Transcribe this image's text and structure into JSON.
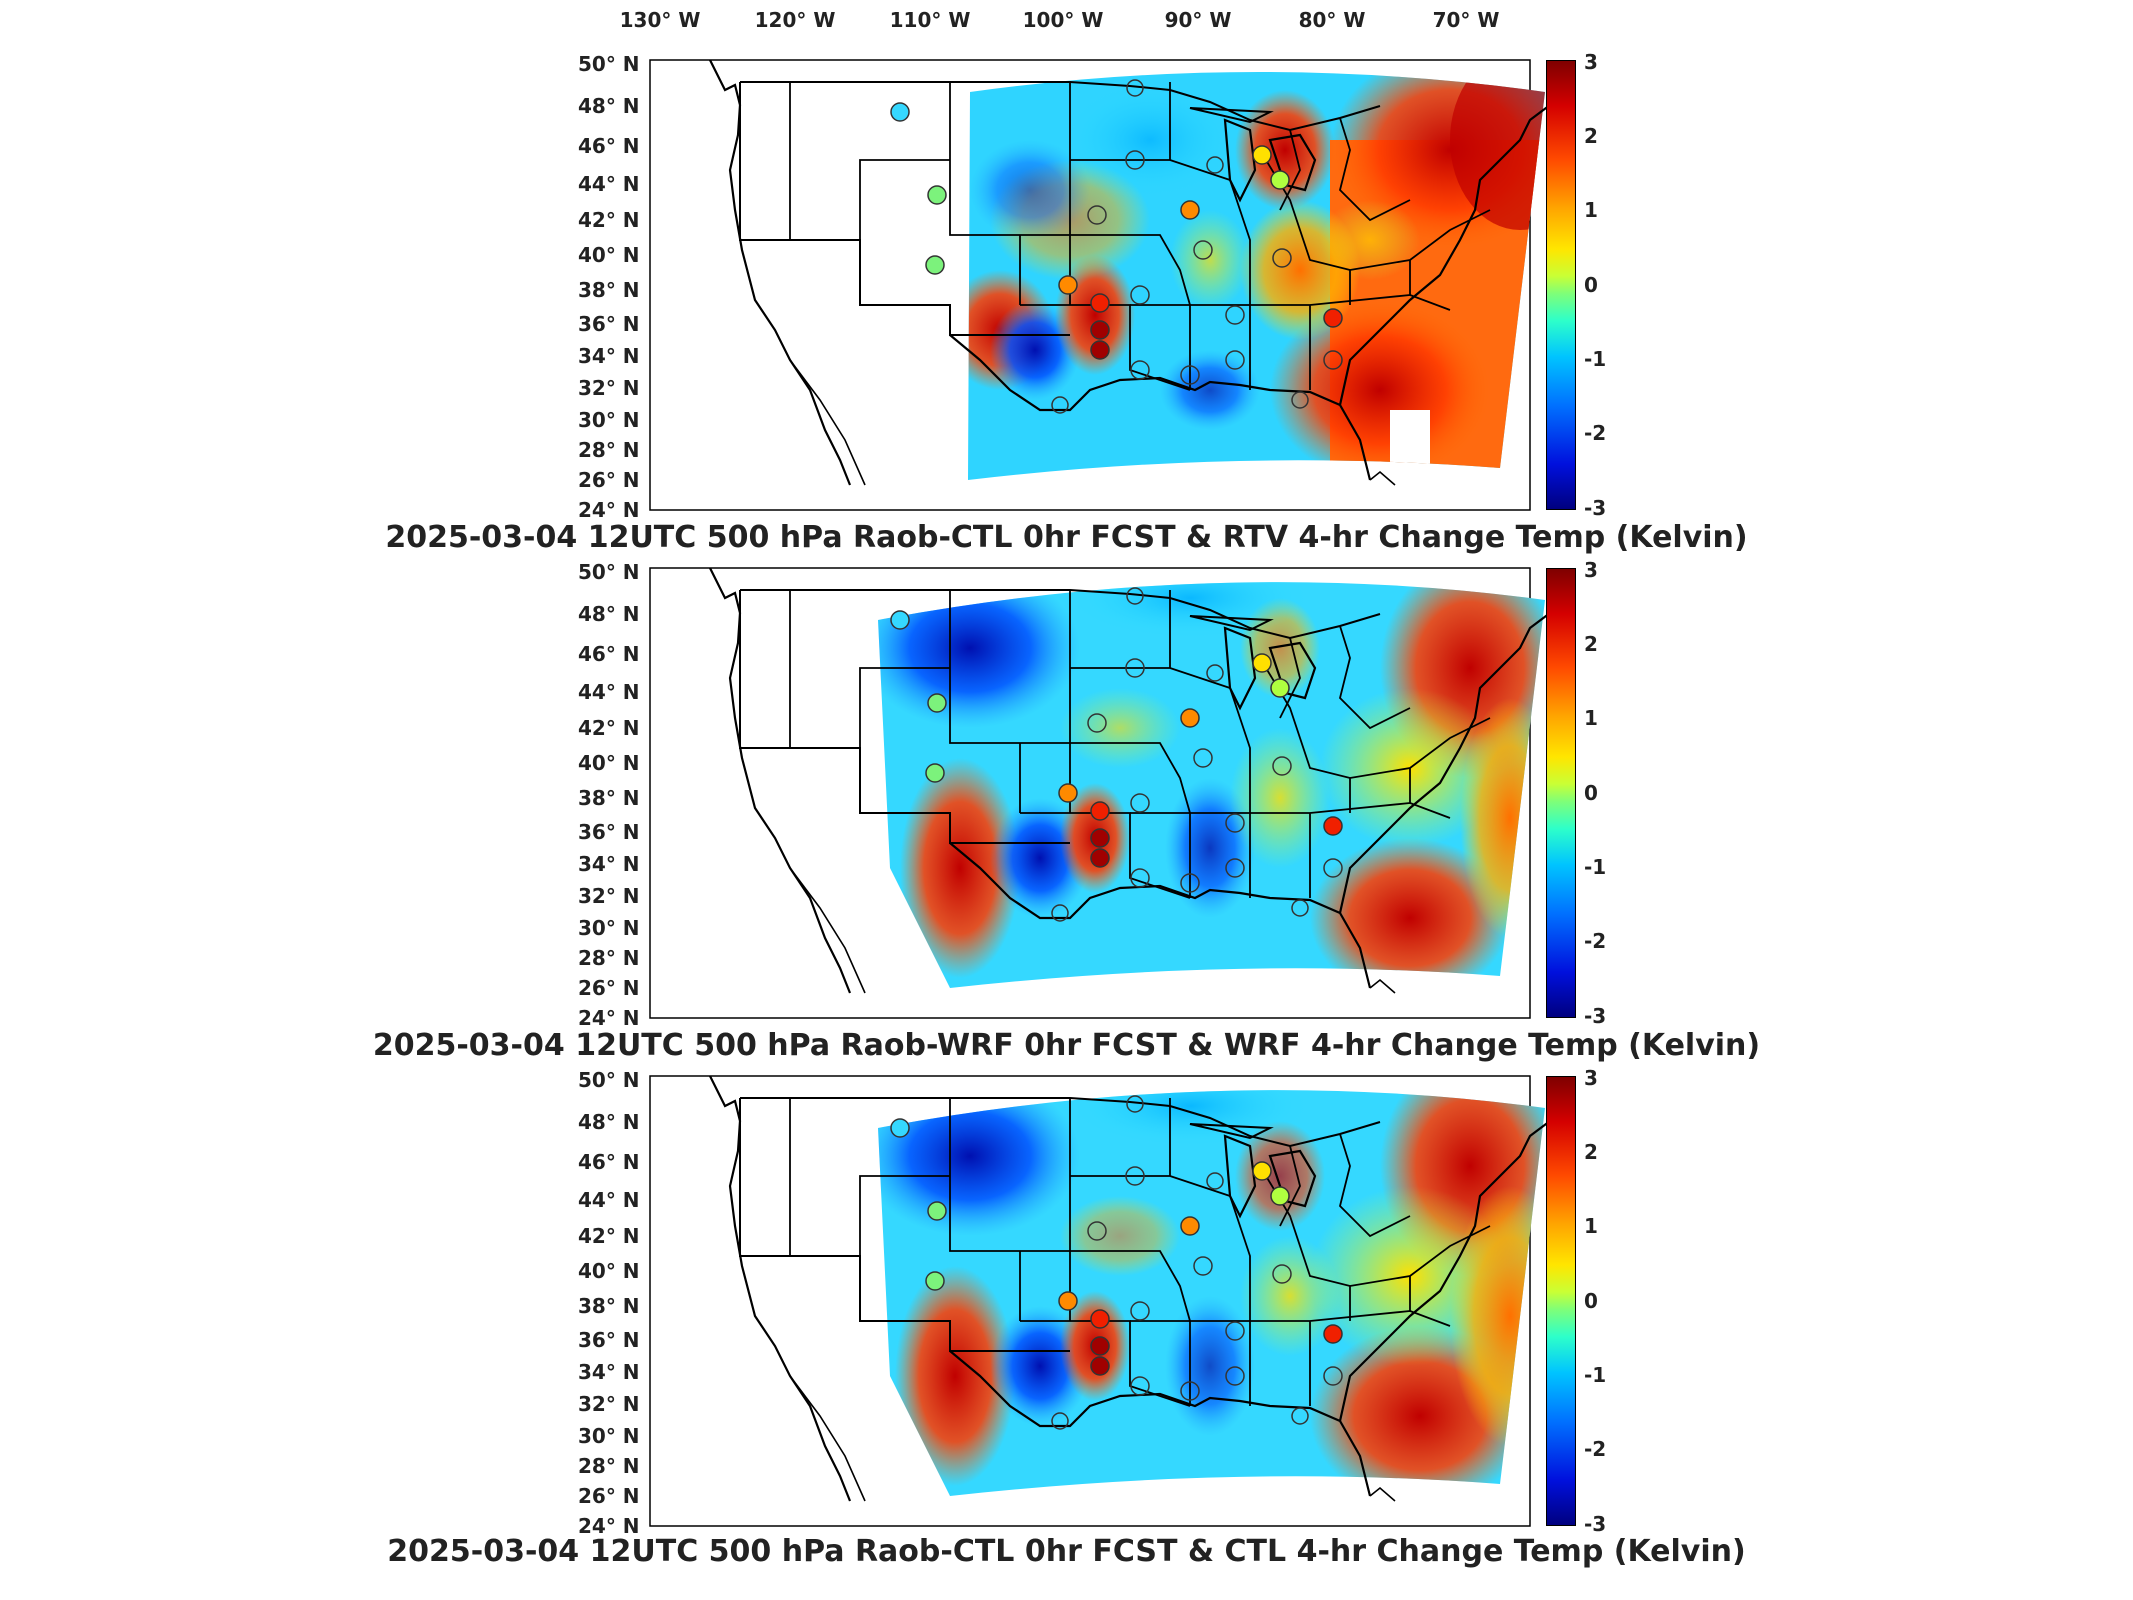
{
  "longitude_labels": [
    "130° W",
    "120° W",
    "110° W",
    "100° W",
    "90° W",
    "80° W",
    "70° W"
  ],
  "latitude_labels": [
    "50° N",
    "48° N",
    "46° N",
    "44° N",
    "42° N",
    "40° N",
    "38° N",
    "36° N",
    "34° N",
    "32° N",
    "30° N",
    "28° N",
    "26° N",
    "24° N"
  ],
  "colorbar": {
    "ticks": [
      "3",
      "2",
      "1",
      "0",
      "-1",
      "-2",
      "-3"
    ]
  },
  "panels": [
    {
      "title": "2025-03-04 12UTC 500 hPa Raob-CTL 0hr FCST & RTV 4-hr Change Temp (Kelvin)"
    },
    {
      "title": "2025-03-04 12UTC 500 hPa Raob-WRF 0hr FCST & WRF 4-hr Change Temp (Kelvin)"
    },
    {
      "title": "2025-03-04 12UTC 500 hPa Raob-CTL 0hr FCST & CTL 4-hr Change Temp (Kelvin)"
    }
  ],
  "colors": {
    "deep_red": "#a00000",
    "red": "#f02000",
    "orange": "#ff8a00",
    "yellow": "#ffe000",
    "green": "#7cf27c",
    "cyan": "#35d8ff",
    "blue": "#1a55ff",
    "deep_blue": "#0010b0"
  }
}
